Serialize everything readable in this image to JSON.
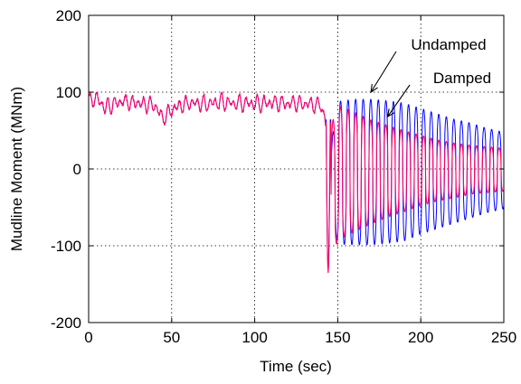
{
  "chart_data": {
    "type": "line",
    "title": "",
    "xlabel": "Time (sec)",
    "ylabel": "Mudline Moment (MNm)",
    "xlim": [
      0,
      250
    ],
    "ylim": [
      -200,
      200
    ],
    "xticks": [
      0,
      50,
      100,
      150,
      200,
      250
    ],
    "yticks": [
      -200,
      -100,
      0,
      100,
      200
    ],
    "grid": true,
    "legend": "none",
    "series": [
      {
        "name": "Undamped",
        "color": "#0000ff",
        "description_points": {
          "t": [
            0,
            5,
            10,
            20,
            30,
            40,
            45,
            50,
            60,
            70,
            80,
            90,
            100,
            110,
            120,
            130,
            140,
            143,
            145,
            150,
            160,
            170,
            180,
            190,
            200,
            210,
            220,
            230,
            240,
            250
          ],
          "mean": [
            90,
            92,
            80,
            88,
            86,
            82,
            65,
            78,
            86,
            85,
            87,
            86,
            85,
            86,
            85,
            86,
            82,
            60,
            -15,
            -5,
            -4,
            -4,
            -4,
            -4,
            -3,
            -3,
            -3,
            -2,
            -2,
            -2
          ],
          "amplitude": [
            8,
            12,
            15,
            10,
            10,
            12,
            10,
            12,
            10,
            12,
            12,
            12,
            12,
            12,
            12,
            12,
            10,
            20,
            30,
            93,
            95,
            95,
            93,
            90,
            82,
            75,
            68,
            62,
            55,
            50
          ]
        }
      },
      {
        "name": "Damped",
        "color": "#ff0066",
        "description_points": {
          "t": [
            0,
            5,
            10,
            20,
            30,
            40,
            45,
            50,
            60,
            70,
            80,
            90,
            100,
            110,
            120,
            130,
            140,
            143,
            145,
            150,
            160,
            170,
            180,
            190,
            200,
            210,
            220,
            230,
            240,
            250
          ],
          "mean": [
            90,
            92,
            80,
            88,
            86,
            82,
            65,
            78,
            86,
            85,
            87,
            86,
            85,
            86,
            85,
            86,
            82,
            60,
            -40,
            -5,
            -4,
            -4,
            -3,
            -3,
            -2,
            -2,
            -2,
            -1,
            -1,
            -1
          ],
          "amplitude": [
            8,
            12,
            15,
            10,
            10,
            12,
            10,
            12,
            10,
            12,
            12,
            12,
            12,
            12,
            12,
            12,
            10,
            20,
            90,
            88,
            78,
            68,
            60,
            53,
            46,
            40,
            36,
            32,
            30,
            28
          ]
        }
      }
    ],
    "annotations": [
      {
        "text": "Undamped",
        "arrow_to": [
          170,
          100
        ]
      },
      {
        "text": "Damped",
        "arrow_to": [
          180,
          68
        ]
      }
    ]
  }
}
